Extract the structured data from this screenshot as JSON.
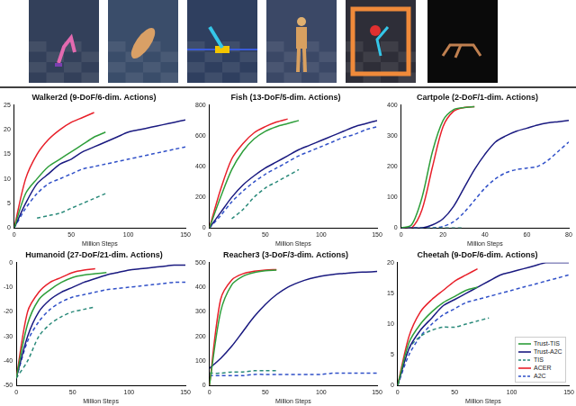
{
  "chart_data": [
    {
      "type": "line",
      "title": "Walker2d (9-DoF/6-dim. Actions)",
      "x_label": "Million Steps",
      "x": [
        0,
        10,
        20,
        30,
        40,
        50,
        60,
        70,
        80,
        90,
        100,
        110,
        120,
        130,
        140,
        150
      ],
      "xlim": [
        0,
        150
      ],
      "xticks": [
        0,
        50,
        100,
        150
      ],
      "ylim": [
        0,
        25
      ],
      "yticks": [
        0,
        5,
        10,
        15,
        20,
        25
      ],
      "grid": false,
      "series": [
        {
          "name": "Trust-TIS",
          "color": "#2e9e3a",
          "line_style": "solid",
          "values": [
            0,
            7,
            10,
            12.5,
            14,
            15.5,
            17,
            18.5,
            19.5,
            null,
            null,
            null,
            null,
            null,
            null,
            null
          ]
        },
        {
          "name": "Trust-A2C",
          "color": "#1a1a80",
          "line_style": "solid",
          "values": [
            0,
            5,
            9,
            11,
            13,
            14,
            15.5,
            16.5,
            17.5,
            18.5,
            19.5,
            20,
            20.5,
            21,
            21.5,
            22
          ]
        },
        {
          "name": "TIS",
          "color": "#2a8a7a",
          "line_style": "dashed",
          "values": [
            null,
            null,
            2,
            2.5,
            3,
            4,
            5,
            6,
            7,
            null,
            null,
            null,
            null,
            null,
            null,
            null
          ]
        },
        {
          "name": "ACER",
          "color": "#e8202a",
          "line_style": "solid",
          "values": [
            0,
            10,
            15,
            18,
            20,
            21.5,
            22.5,
            23.5,
            null,
            null,
            null,
            null,
            null,
            null,
            null,
            null
          ]
        },
        {
          "name": "A2C",
          "color": "#3050c8",
          "line_style": "dashed",
          "values": [
            0,
            4,
            7,
            9,
            10,
            11,
            12,
            12.5,
            13,
            13.5,
            14,
            14.5,
            15,
            15.5,
            16,
            16.5
          ]
        }
      ]
    },
    {
      "type": "line",
      "title": "Fish (13-DoF/5-dim. Actions)",
      "x_label": "Million Steps",
      "x": [
        0,
        10,
        20,
        30,
        40,
        50,
        60,
        70,
        80,
        90,
        100,
        110,
        120,
        130,
        140,
        150
      ],
      "xlim": [
        0,
        150
      ],
      "xticks": [
        0,
        50,
        100,
        150
      ],
      "ylim": [
        0,
        800
      ],
      "yticks": [
        0,
        200,
        400,
        600,
        800
      ],
      "grid": false,
      "series": [
        {
          "name": "Trust-TIS",
          "color": "#2e9e3a",
          "line_style": "solid",
          "values": [
            0,
            200,
            380,
            500,
            580,
            630,
            660,
            680,
            700,
            null,
            null,
            null,
            null,
            null,
            null,
            null
          ]
        },
        {
          "name": "Trust-A2C",
          "color": "#1a1a80",
          "line_style": "solid",
          "values": [
            0,
            100,
            200,
            280,
            340,
            390,
            430,
            470,
            510,
            540,
            570,
            600,
            630,
            660,
            680,
            700
          ]
        },
        {
          "name": "TIS",
          "color": "#2a8a7a",
          "line_style": "dashed",
          "values": [
            null,
            null,
            60,
            120,
            200,
            260,
            300,
            340,
            380,
            null,
            null,
            null,
            null,
            null,
            null,
            null
          ]
        },
        {
          "name": "ACER",
          "color": "#e8202a",
          "line_style": "solid",
          "values": [
            0,
            250,
            450,
            550,
            620,
            660,
            690,
            710,
            null,
            null,
            null,
            null,
            null,
            null,
            null,
            null
          ]
        },
        {
          "name": "A2C",
          "color": "#3050c8",
          "line_style": "dashed",
          "values": [
            0,
            80,
            170,
            240,
            300,
            350,
            390,
            430,
            470,
            500,
            530,
            560,
            590,
            610,
            640,
            660
          ]
        }
      ]
    },
    {
      "type": "line",
      "title": "Cartpole (2-DoF/1-dim. Actions)",
      "x_label": "Million Steps",
      "x": [
        0,
        5,
        10,
        15,
        20,
        25,
        30,
        35,
        40,
        45,
        50,
        55,
        60,
        65,
        70,
        75,
        80
      ],
      "xlim": [
        0,
        80
      ],
      "xticks": [
        0,
        20,
        40,
        60,
        80
      ],
      "ylim": [
        0,
        400
      ],
      "yticks": [
        0,
        100,
        200,
        300,
        400
      ],
      "grid": false,
      "series": [
        {
          "name": "Trust-TIS",
          "color": "#2e9e3a",
          "line_style": "solid",
          "values": [
            0,
            10,
            100,
            250,
            350,
            385,
            392,
            395,
            null,
            null,
            null,
            null,
            null,
            null,
            null,
            null,
            null
          ]
        },
        {
          "name": "Trust-A2C",
          "color": "#1a1a80",
          "line_style": "solid",
          "values": [
            0,
            0,
            0,
            10,
            30,
            70,
            130,
            190,
            240,
            280,
            300,
            315,
            325,
            335,
            342,
            346,
            350
          ]
        },
        {
          "name": "TIS",
          "color": "#2a8a7a",
          "line_style": "dashed",
          "values": [
            0,
            0,
            0,
            0,
            0,
            0,
            0,
            null,
            null,
            null,
            null,
            null,
            null,
            null,
            null,
            null,
            null
          ]
        },
        {
          "name": "ACER",
          "color": "#e8202a",
          "line_style": "solid",
          "values": [
            0,
            0,
            60,
            200,
            330,
            380,
            392,
            395,
            null,
            null,
            null,
            null,
            null,
            null,
            null,
            null,
            null
          ]
        },
        {
          "name": "A2C",
          "color": "#3050c8",
          "line_style": "dashed",
          "values": [
            0,
            0,
            0,
            0,
            5,
            20,
            50,
            90,
            130,
            160,
            180,
            190,
            195,
            200,
            220,
            250,
            280
          ]
        }
      ]
    },
    {
      "type": "line",
      "title": "Humanoid (27-DoF/21-dim. Actions)",
      "x_label": "Million Steps",
      "x": [
        0,
        10,
        20,
        30,
        40,
        50,
        60,
        70,
        80,
        90,
        100,
        110,
        120,
        130,
        140,
        150
      ],
      "xlim": [
        0,
        150
      ],
      "xticks": [
        0,
        50,
        100,
        150
      ],
      "ylim": [
        -50,
        0
      ],
      "yticks": [
        -50,
        -40,
        -30,
        -20,
        -10,
        0
      ],
      "grid": false,
      "series": [
        {
          "name": "Trust-TIS",
          "color": "#2e9e3a",
          "line_style": "solid",
          "values": [
            -47,
            -25,
            -15,
            -11,
            -8,
            -6,
            -5,
            -4.5,
            -4,
            null,
            null,
            null,
            null,
            null,
            null,
            null
          ]
        },
        {
          "name": "Trust-A2C",
          "color": "#1a1a80",
          "line_style": "solid",
          "values": [
            -47,
            -30,
            -20,
            -15,
            -12,
            -10,
            -8,
            -6.5,
            -5,
            -4,
            -3,
            -2.5,
            -2,
            -1.5,
            -1,
            -1
          ]
        },
        {
          "name": "TIS",
          "color": "#2a8a7a",
          "line_style": "dashed",
          "values": [
            -47,
            -40,
            -30,
            -25,
            -22,
            -20,
            -19,
            -18,
            null,
            null,
            null,
            null,
            null,
            null,
            null,
            null
          ]
        },
        {
          "name": "ACER",
          "color": "#e8202a",
          "line_style": "solid",
          "values": [
            -47,
            -20,
            -12,
            -8,
            -6,
            -4,
            -3,
            -2.5,
            null,
            null,
            null,
            null,
            null,
            null,
            null,
            null
          ]
        },
        {
          "name": "A2C",
          "color": "#3050c8",
          "line_style": "dashed",
          "values": [
            -47,
            -32,
            -24,
            -19,
            -16,
            -14,
            -13,
            -12,
            -11,
            -10.5,
            -10,
            -9.5,
            -9,
            -8.5,
            -8,
            -8
          ]
        }
      ]
    },
    {
      "type": "line",
      "title": "Reacher3 (3-DoF/3-dim. Actions)",
      "x_label": "Million Steps",
      "x": [
        0,
        10,
        20,
        30,
        40,
        50,
        60,
        70,
        80,
        90,
        100,
        110,
        120,
        130,
        140,
        150
      ],
      "xlim": [
        0,
        150
      ],
      "xticks": [
        0,
        50,
        100,
        150
      ],
      "ylim": [
        0,
        500
      ],
      "yticks": [
        0,
        100,
        200,
        300,
        400,
        500
      ],
      "grid": false,
      "series": [
        {
          "name": "Trust-TIS",
          "color": "#2e9e3a",
          "line_style": "solid",
          "values": [
            0,
            300,
            410,
            445,
            460,
            467,
            470,
            null,
            null,
            null,
            null,
            null,
            null,
            null,
            null,
            null
          ]
        },
        {
          "name": "Trust-A2C",
          "color": "#1a1a80",
          "line_style": "solid",
          "values": [
            70,
            110,
            160,
            220,
            280,
            330,
            370,
            400,
            420,
            435,
            445,
            452,
            456,
            460,
            462,
            464
          ]
        },
        {
          "name": "TIS",
          "color": "#2a8a7a",
          "line_style": "dashed",
          "values": [
            50,
            50,
            55,
            55,
            60,
            60,
            60,
            null,
            null,
            null,
            null,
            null,
            null,
            null,
            null,
            null
          ]
        },
        {
          "name": "ACER",
          "color": "#e8202a",
          "line_style": "solid",
          "values": [
            0,
            350,
            430,
            455,
            465,
            470,
            472,
            null,
            null,
            null,
            null,
            null,
            null,
            null,
            null,
            null
          ]
        },
        {
          "name": "A2C",
          "color": "#3050c8",
          "line_style": "dashed",
          "values": [
            40,
            40,
            40,
            40,
            45,
            45,
            45,
            45,
            45,
            45,
            45,
            50,
            50,
            50,
            50,
            50
          ]
        }
      ]
    },
    {
      "type": "line",
      "title": "Cheetah (9-DoF/6-dim. Actions)",
      "x_label": "Million Steps",
      "x": [
        0,
        10,
        20,
        30,
        40,
        50,
        60,
        70,
        80,
        90,
        100,
        110,
        120,
        130,
        140,
        150
      ],
      "xlim": [
        0,
        150
      ],
      "xticks": [
        0,
        50,
        100,
        150
      ],
      "ylim": [
        0,
        20
      ],
      "yticks": [
        0,
        5,
        10,
        15,
        20
      ],
      "grid": false,
      "legend": "lower right",
      "series": [
        {
          "name": "Trust-TIS",
          "color": "#2e9e3a",
          "line_style": "solid",
          "values": [
            0,
            7,
            10,
            12,
            13.5,
            14.5,
            15.5,
            16,
            null,
            null,
            null,
            null,
            null,
            null,
            null,
            null
          ]
        },
        {
          "name": "Trust-A2C",
          "color": "#1a1a80",
          "line_style": "solid",
          "values": [
            0,
            6,
            9,
            11,
            13,
            14,
            15,
            16,
            17,
            18,
            18.5,
            19,
            19.5,
            20,
            20,
            20
          ]
        },
        {
          "name": "TIS",
          "color": "#2a8a7a",
          "line_style": "dashed",
          "values": [
            0,
            6,
            8,
            9,
            9.5,
            9.5,
            10,
            10.5,
            11,
            null,
            null,
            null,
            null,
            null,
            null,
            null
          ]
        },
        {
          "name": "ACER",
          "color": "#e8202a",
          "line_style": "solid",
          "values": [
            0,
            8,
            12,
            14,
            15.5,
            17,
            18,
            19,
            null,
            null,
            null,
            null,
            null,
            null,
            null,
            null
          ]
        },
        {
          "name": "A2C",
          "color": "#3050c8",
          "line_style": "dashed",
          "values": [
            0,
            5,
            8,
            10,
            11.5,
            12.5,
            13.5,
            14,
            14.5,
            15,
            15.5,
            16,
            16.5,
            17,
            17.5,
            18
          ]
        }
      ]
    }
  ]
}
